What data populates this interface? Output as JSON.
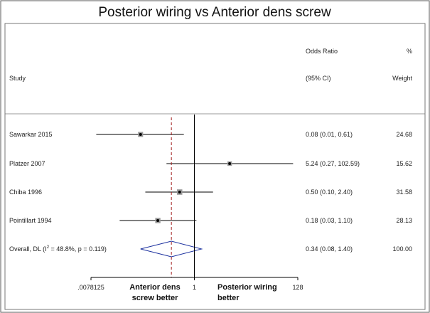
{
  "chart_data": {
    "type": "forest",
    "title": "Posterior wiring vs Anterior dens screw",
    "headers": {
      "study": "Study",
      "or_line1": "Odds Ratio",
      "or_line2": "(95% CI)",
      "weight_line1": "%",
      "weight_line2": "Weight"
    },
    "studies": [
      {
        "label": "Sawarkar 2015",
        "or": 0.08,
        "lo": 0.01,
        "hi": 0.61,
        "ci_text": "0.08 (0.01, 0.61)",
        "weight": 24.68,
        "weight_text": "24.68"
      },
      {
        "label": "Platzer 2007",
        "or": 5.24,
        "lo": 0.27,
        "hi": 102.59,
        "ci_text": "5.24 (0.27, 102.59)",
        "weight": 15.62,
        "weight_text": "15.62"
      },
      {
        "label": "Chiba 1996",
        "or": 0.5,
        "lo": 0.1,
        "hi": 2.4,
        "ci_text": "0.50 (0.10, 2.40)",
        "weight": 31.58,
        "weight_text": "31.58"
      },
      {
        "label": "Pointillart 1994",
        "or": 0.18,
        "lo": 0.03,
        "hi": 1.1,
        "ci_text": "0.18 (0.03, 1.10)",
        "weight": 28.13,
        "weight_text": "28.13"
      }
    ],
    "overall": {
      "label_pre": "Overall, DL (I",
      "label_sup": "2",
      "label_post": " = 48.8%, p = 0.119)",
      "or": 0.34,
      "lo": 0.08,
      "hi": 1.4,
      "ci_text": "0.34 (0.08, 1.40)",
      "weight_text": "100.00"
    },
    "x_scale": "log",
    "xlim": [
      0.0078125,
      128
    ],
    "ticks": [
      {
        "value": 0.0078125,
        "label": ".0078125"
      },
      {
        "value": 1,
        "label": "1"
      },
      {
        "value": 128,
        "label": "128"
      }
    ],
    "left_annotation": [
      "Anterior dens",
      "screw better"
    ],
    "right_annotation": [
      "Posterior wiring",
      "better"
    ],
    "null_value": 1,
    "colors": {
      "line": "#000000",
      "reference": "#a01c1c",
      "diamond": "#1a2f9e",
      "frame": "#555555"
    }
  }
}
